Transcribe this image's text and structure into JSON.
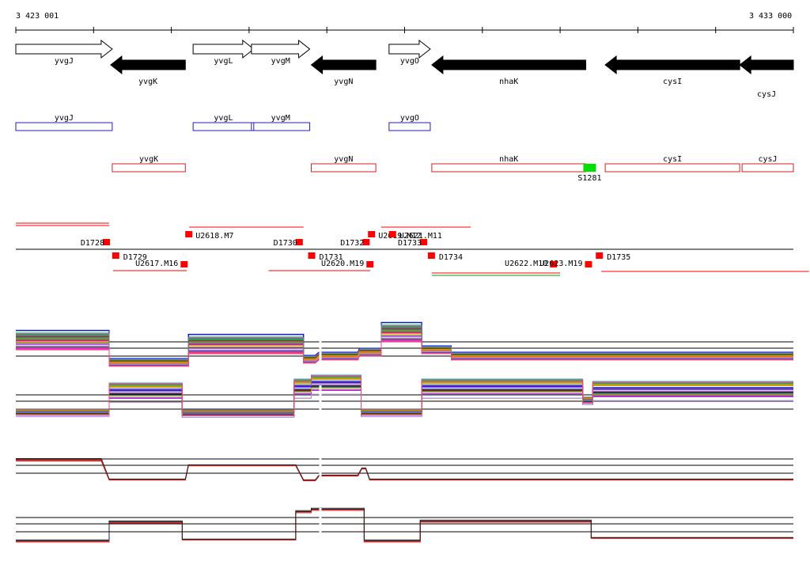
{
  "axis": {
    "start_label": "3 423 001",
    "end_label": "3 433 000"
  },
  "colors": {
    "gene_forward": "#ffffff",
    "gene_reverse": "#000000",
    "box_forward": "#1f1fbf",
    "box_reverse": "#d02020",
    "marker": "#ff0000",
    "site": "#00e000",
    "axis_line": "#000000"
  },
  "genes": [
    {
      "name": "yvgJ",
      "strand": "+",
      "start": 0,
      "end": 1240
    },
    {
      "name": "yvgK",
      "strand": "-",
      "start": 1220,
      "end": 2180
    },
    {
      "name": "yvgL",
      "strand": "+",
      "start": 2280,
      "end": 3060
    },
    {
      "name": "yvgM",
      "strand": "+",
      "start": 3030,
      "end": 3780
    },
    {
      "name": "yvgN",
      "strand": "-",
      "start": 3800,
      "end": 4630
    },
    {
      "name": "yvgO",
      "strand": "+",
      "start": 4800,
      "end": 5330
    },
    {
      "name": "nhaK",
      "strand": "-",
      "start": 5350,
      "end": 7330
    },
    {
      "name": "cysI",
      "strand": "-",
      "start": 7580,
      "end": 9310
    },
    {
      "name": "cysJ",
      "strand": "-",
      "start": 9310,
      "end": 10000
    }
  ],
  "feature_boxes": {
    "forward": [
      {
        "name": "yvgJ",
        "start": 0,
        "end": 1240
      },
      {
        "name": "yvgL",
        "start": 2280,
        "end": 3060
      },
      {
        "name": "yvgM",
        "start": 3030,
        "end": 3780
      },
      {
        "name": "yvgO",
        "start": 4800,
        "end": 5330
      }
    ],
    "reverse": [
      {
        "name": "yvgK",
        "start": 1240,
        "end": 2180
      },
      {
        "name": "yvgN",
        "start": 3800,
        "end": 4630
      },
      {
        "name": "nhaK",
        "start": 5350,
        "end": 7330
      },
      {
        "name": "cysI",
        "start": 7580,
        "end": 9310
      },
      {
        "name": "cysJ",
        "start": 9340,
        "end": 10000
      }
    ]
  },
  "site": {
    "name": "S1281",
    "pos": 7380
  },
  "markers": [
    {
      "name": "D1728",
      "pos": 1170,
      "row": "up"
    },
    {
      "name": "D1729",
      "pos": 1290,
      "row": "down"
    },
    {
      "name": "U2617.M16",
      "pos": 2170,
      "row": "down2"
    },
    {
      "name": "U2618.M7",
      "pos": 2230,
      "row": "up2"
    },
    {
      "name": "D1730",
      "pos": 3650,
      "row": "up"
    },
    {
      "name": "D1731",
      "pos": 3810,
      "row": "down"
    },
    {
      "name": "U2620.M19",
      "pos": 4560,
      "row": "down2"
    },
    {
      "name": "D1732",
      "pos": 4510,
      "row": "up"
    },
    {
      "name": "U2619.M12",
      "pos": 4580,
      "row": "up2"
    },
    {
      "name": "U2621.M11",
      "pos": 4850,
      "row": "up2"
    },
    {
      "name": "D1733",
      "pos": 5250,
      "row": "up"
    },
    {
      "name": "D1734",
      "pos": 5350,
      "row": "down"
    },
    {
      "name": "U2622.M10",
      "pos": 6920,
      "row": "down2"
    },
    {
      "name": "U2623.M19",
      "pos": 7370,
      "row": "down2"
    },
    {
      "name": "D1735",
      "pos": 7510,
      "row": "down"
    }
  ],
  "expression_panels": [
    {
      "name": "panel-1",
      "base": 450,
      "segments": [
        [
          0,
          1200,
          -20
        ],
        [
          1200,
          2220,
          8
        ],
        [
          2220,
          3700,
          -15
        ],
        [
          3700,
          3850,
          4
        ],
        [
          3900,
          4400,
          0
        ],
        [
          4420,
          4700,
          -5
        ],
        [
          4700,
          5220,
          -30
        ],
        [
          5220,
          5600,
          -8
        ],
        [
          5600,
          10000,
          0
        ]
      ]
    },
    {
      "name": "panel-2",
      "base": 517,
      "segments": [
        [
          0,
          1200,
          5
        ],
        [
          1200,
          2140,
          -20
        ],
        [
          2140,
          3580,
          6
        ],
        [
          3580,
          3800,
          -25
        ],
        [
          3800,
          4440,
          -30
        ],
        [
          4440,
          5220,
          5
        ],
        [
          5220,
          7290,
          -25
        ],
        [
          7290,
          7420,
          -10
        ],
        [
          7420,
          10000,
          -22
        ]
      ]
    }
  ],
  "summary_panels": [
    {
      "name": "summary-1",
      "base": 598,
      "segments": [
        [
          0,
          1100,
          -17
        ],
        [
          1200,
          2180,
          8
        ],
        [
          2220,
          3600,
          -10
        ],
        [
          3700,
          3850,
          9
        ],
        [
          3900,
          4400,
          3
        ],
        [
          4450,
          4500,
          -6
        ],
        [
          4550,
          10000,
          8
        ]
      ]
    },
    {
      "name": "summary-2",
      "base": 672,
      "segments": [
        [
          0,
          1200,
          12
        ],
        [
          1200,
          2140,
          -12
        ],
        [
          2140,
          3600,
          10
        ],
        [
          3600,
          3800,
          -25
        ],
        [
          3800,
          4480,
          -28
        ],
        [
          4480,
          5200,
          12
        ],
        [
          5200,
          7400,
          -13
        ],
        [
          7400,
          10000,
          8
        ]
      ]
    }
  ]
}
